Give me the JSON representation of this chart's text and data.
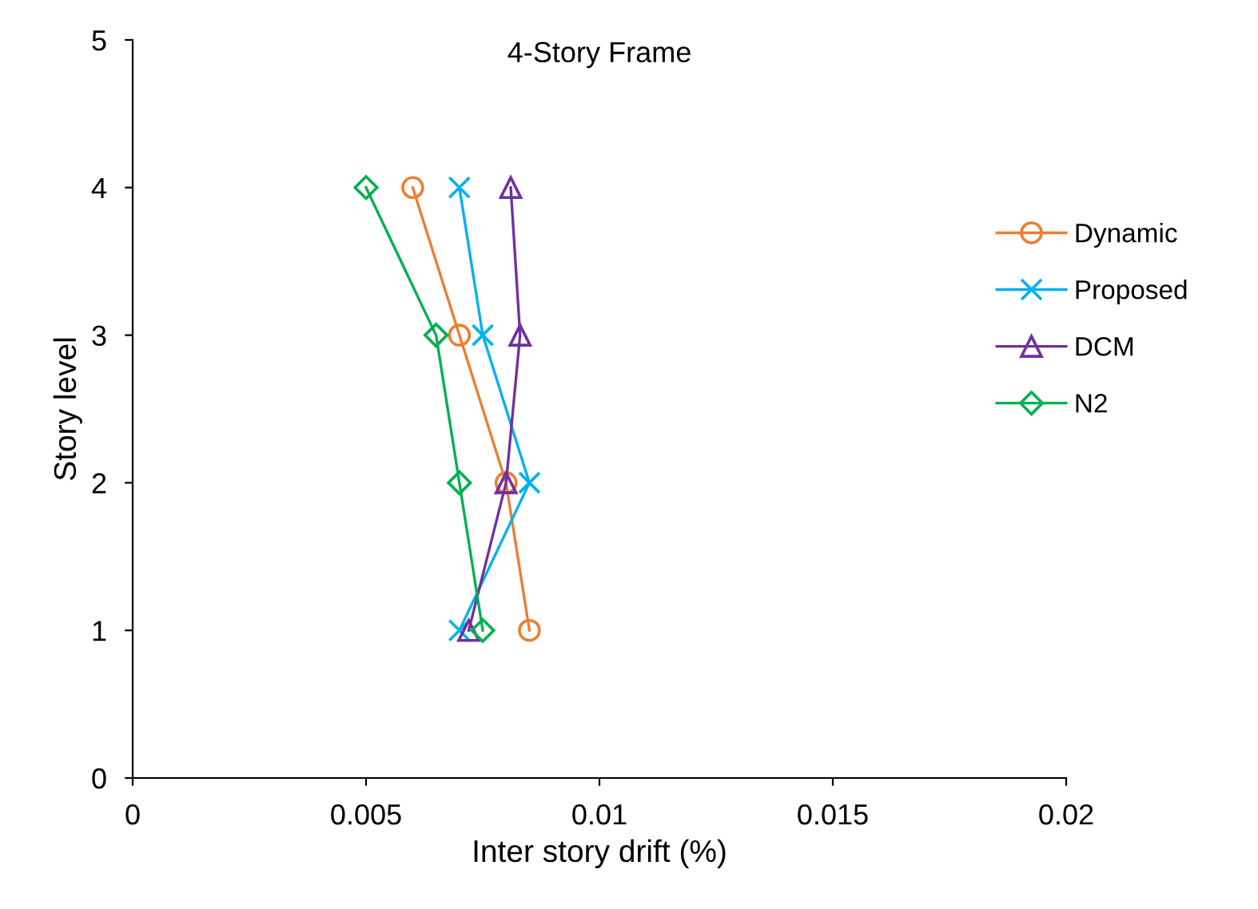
{
  "chart_data": {
    "type": "line",
    "title": "4-Story Frame",
    "xlabel": "Inter story drift (%)",
    "ylabel": "Story level",
    "xlim": [
      0,
      0.02
    ],
    "xticks": [
      0,
      0.005,
      0.01,
      0.015,
      0.02
    ],
    "ylim": [
      0,
      5
    ],
    "yticks": [
      0,
      1,
      2,
      3,
      4,
      5
    ],
    "grid": false,
    "legend": "right",
    "series": [
      {
        "name": "Dynamic",
        "color": "#ed7d31",
        "marker": "circle",
        "x": [
          0.006,
          0.007,
          0.008,
          0.0085
        ],
        "values": [
          4,
          3,
          2,
          1
        ]
      },
      {
        "name": "Proposed",
        "color": "#00b0f0",
        "marker": "cross",
        "x": [
          0.007,
          0.0075,
          0.0085,
          0.007
        ],
        "values": [
          4,
          3,
          2,
          1
        ]
      },
      {
        "name": "DCM",
        "color": "#7030a0",
        "marker": "triangle",
        "x": [
          0.0081,
          0.0083,
          0.008,
          0.0072
        ],
        "values": [
          4,
          3,
          2,
          1
        ]
      },
      {
        "name": "N2",
        "color": "#00b050",
        "marker": "diamond",
        "x": [
          0.005,
          0.0065,
          0.007,
          0.0075
        ],
        "values": [
          4,
          3,
          2,
          1
        ]
      }
    ]
  }
}
